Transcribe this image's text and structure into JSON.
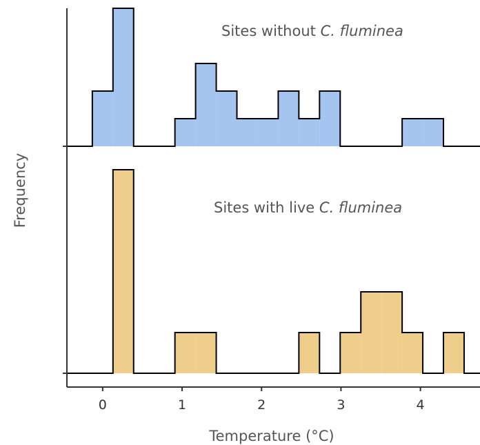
{
  "chart_data": {
    "type": "histogram",
    "xlabel": "Temperature (°C)",
    "ylabel": "Frequency",
    "x_ticks": [
      0,
      1,
      2,
      3,
      4
    ],
    "xlim": [
      -0.45,
      4.75
    ],
    "bin_width": 0.26,
    "bin_start": -0.13,
    "panels": [
      {
        "title_plain": "Sites without ",
        "title_italic": "C. fluminea",
        "fill": "#a5c4ef",
        "ylim": [
          0,
          5
        ],
        "counts": [
          2,
          5,
          0,
          0,
          1,
          3,
          2,
          1,
          1,
          2,
          1,
          2,
          0,
          0,
          0,
          1,
          1,
          0,
          0
        ]
      },
      {
        "title_plain": "Sites with live ",
        "title_italic": "C. fluminea",
        "fill": "#efcd8b",
        "ylim": [
          0,
          5
        ],
        "counts": [
          0,
          5,
          0,
          0,
          1,
          1,
          0,
          0,
          0,
          0,
          1,
          0,
          1,
          2,
          2,
          1,
          0,
          1,
          0
        ]
      }
    ]
  }
}
